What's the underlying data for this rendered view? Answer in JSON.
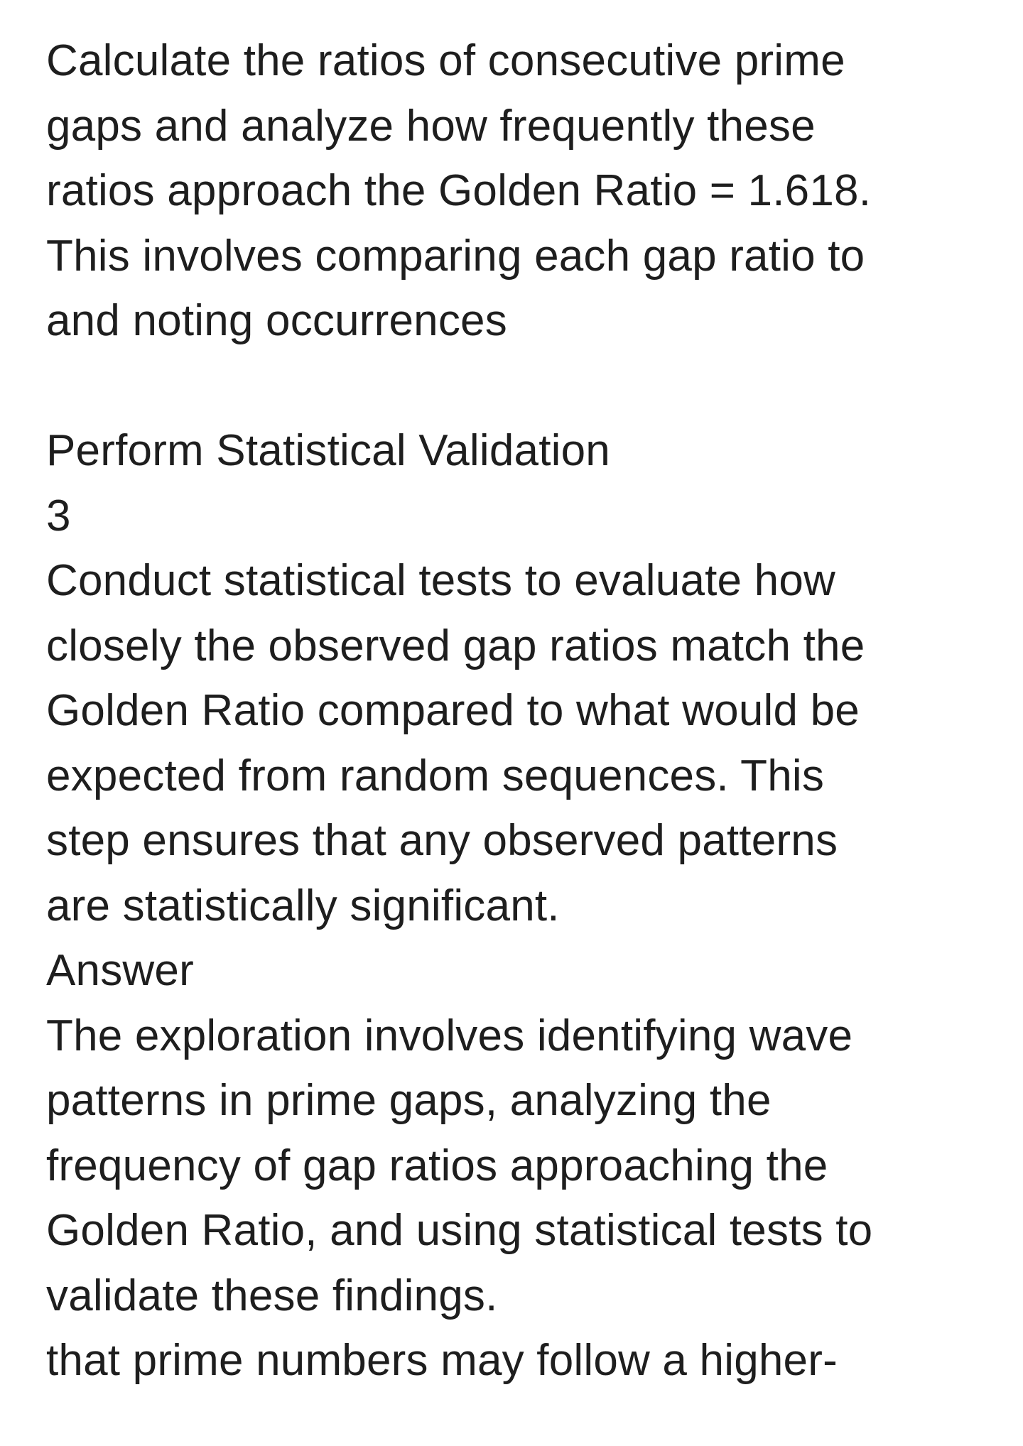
{
  "paragraph_1": [
    "Calculate the ratios of consecutive prime",
    "gaps and analyze how frequently these",
    "ratios approach the Golden Ratio = 1.618.",
    "This involves comparing each gap ratio to",
    "and noting occurrences"
  ],
  "section_title": "Perform Statistical Validation",
  "step_number": "3",
  "paragraph_2": [
    "Conduct statistical tests to evaluate how",
    "closely the observed gap ratios match the",
    "Golden Ratio compared to what would be",
    "expected from random sequences. This",
    "step ensures that any observed patterns",
    "are statistically significant."
  ],
  "answer_label": "Answer",
  "paragraph_3": [
    "The exploration involves identifying wave",
    "patterns in prime gaps, analyzing the",
    "frequency of gap ratios approaching the",
    "Golden Ratio, and using statistical tests to",
    "validate these findings.",
    "that prime numbers may follow a higher-"
  ]
}
